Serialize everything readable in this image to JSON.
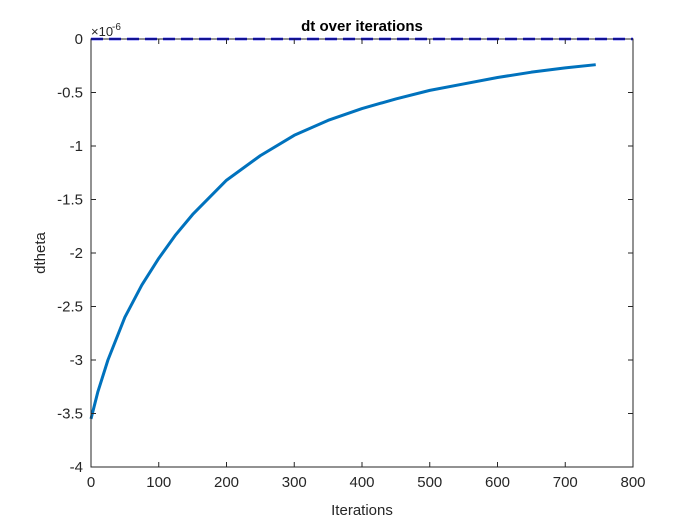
{
  "chart_data": {
    "type": "line",
    "title": "dt over iterations",
    "xlabel": "Iterations",
    "ylabel": "dtheta",
    "exponent_base": "×10",
    "exponent_power": "-6",
    "xlim": [
      0,
      800
    ],
    "ylim": [
      -4,
      0
    ],
    "x_ticks": [
      0,
      100,
      200,
      300,
      400,
      500,
      600,
      700,
      800
    ],
    "x_tick_labels": [
      "0",
      "100",
      "200",
      "300",
      "400",
      "500",
      "600",
      "700",
      "800"
    ],
    "y_ticks": [
      0,
      -0.5,
      -1,
      -1.5,
      -2,
      -2.5,
      -3,
      -3.5,
      -4
    ],
    "y_tick_labels": [
      "0",
      "-0.5",
      "-1",
      "-1.5",
      "-2",
      "-2.5",
      "-3",
      "-3.5",
      "-4"
    ],
    "y_scale_note": "values ×10^-6",
    "grid": false,
    "series": [
      {
        "style": "solid",
        "color": "#0072BD",
        "x": [
          0,
          10,
          25,
          50,
          75,
          100,
          125,
          150,
          200,
          250,
          300,
          350,
          400,
          450,
          500,
          550,
          600,
          650,
          700,
          745
        ],
        "y": [
          -3.55,
          -3.3,
          -3.0,
          -2.6,
          -2.3,
          -2.05,
          -1.83,
          -1.64,
          -1.32,
          -1.09,
          -0.9,
          -0.76,
          -0.65,
          -0.56,
          -0.48,
          -0.42,
          -0.36,
          -0.31,
          -0.27,
          -0.24
        ]
      },
      {
        "style": "dashed",
        "color": "#0000FF",
        "x": [
          0,
          800
        ],
        "y": [
          0,
          0
        ]
      }
    ],
    "colors": {
      "axis": "#262626",
      "curve": "#0072BD",
      "zero_line": "#0000FF"
    }
  }
}
